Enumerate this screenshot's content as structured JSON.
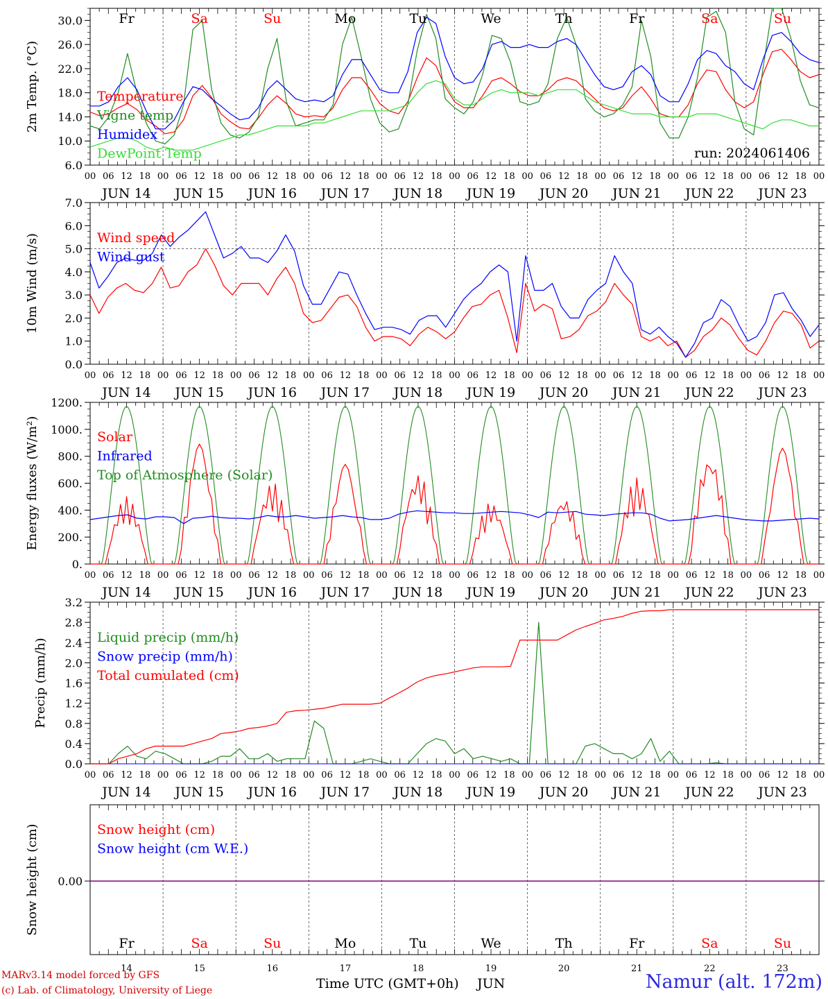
{
  "run_label": "run: 2024061406",
  "station": "Namur (alt. 172m)",
  "footer": {
    "line1": "MARv3.14 model forced by GFS",
    "line2": "(c) Lab. of Climatology, University of Liege"
  },
  "x_axis_title": "Time UTC (GMT+0h)",
  "month_label": "JUN",
  "days": [
    {
      "name": "Fr",
      "date": "JUN 14",
      "num": "14",
      "weekend": false
    },
    {
      "name": "Sa",
      "date": "JUN 15",
      "num": "15",
      "weekend": true
    },
    {
      "name": "Su",
      "date": "JUN 16",
      "num": "16",
      "weekend": true
    },
    {
      "name": "Mo",
      "date": "JUN 17",
      "num": "17",
      "weekend": false
    },
    {
      "name": "Tu",
      "date": "JUN 18",
      "num": "18",
      "weekend": false
    },
    {
      "name": "We",
      "date": "JUN 19",
      "num": "19",
      "weekend": false
    },
    {
      "name": "Th",
      "date": "JUN 20",
      "num": "20",
      "weekend": false
    },
    {
      "name": "Fr",
      "date": "JUN 21",
      "num": "21",
      "weekend": false
    },
    {
      "name": "Sa",
      "date": "JUN 22",
      "num": "22",
      "weekend": true
    },
    {
      "name": "Su",
      "date": "JUN 23",
      "num": "23",
      "weekend": true
    }
  ],
  "hour_labels": [
    "00",
    "06",
    "12",
    "18"
  ],
  "colors": {
    "red": "#ff0000",
    "green": "#228b22",
    "blue": "#0000ff",
    "lightgreen": "#33dd33",
    "weekend": "#ff0000",
    "weekday": "#000000",
    "purple": "#800080"
  },
  "chart_data": [
    {
      "id": "temperature",
      "type": "line",
      "ylabel": "2m Temp. (°C)",
      "ylim": [
        6,
        32
      ],
      "yticks": [
        6,
        10,
        14,
        18,
        22,
        26,
        30
      ],
      "ytick_labels": [
        "6.0",
        "10.0",
        "14.0",
        "18.0",
        "22.0",
        "26.0",
        "30.0"
      ],
      "x_unit": "hours from JUN 14 00 UTC, 3-hourly",
      "series": [
        {
          "name": "Temperature",
          "color": "red",
          "values": [
            14.8,
            14.2,
            14.5,
            15.5,
            16.2,
            15.2,
            13.5,
            12.5,
            11.2,
            11.5,
            13.5,
            17.5,
            19.2,
            17.2,
            14.5,
            13.2,
            12.2,
            12.0,
            13.8,
            16.0,
            17.5,
            16.2,
            14.5,
            14.0,
            14.2,
            14.0,
            15.5,
            18.5,
            20.5,
            20.5,
            18.5,
            16.2,
            15.0,
            14.5,
            16.5,
            20.5,
            23.8,
            22.5,
            19.0,
            16.5,
            15.5,
            15.5,
            17.5,
            20.0,
            20.5,
            19.5,
            18.2,
            17.5,
            17.5,
            18.5,
            20.0,
            20.5,
            20.0,
            18.5,
            17.0,
            15.5,
            15.0,
            15.5,
            17.5,
            19.0,
            17.0,
            14.5,
            14.0,
            14.0,
            16.0,
            19.5,
            21.8,
            21.5,
            18.5,
            16.5,
            15.5,
            16.5,
            21.0,
            24.8,
            25.2,
            23.5,
            21.5,
            20.5,
            21.0
          ]
        },
        {
          "name": "Vigne temp",
          "color": "green",
          "values": [
            12.5,
            12.0,
            14.0,
            18.0,
            24.5,
            18.0,
            13.0,
            10.0,
            9.5,
            11.0,
            16.0,
            28.5,
            30.0,
            18.5,
            13.0,
            11.0,
            10.5,
            11.5,
            14.0,
            22.0,
            27.0,
            16.5,
            12.5,
            13.0,
            13.5,
            13.5,
            16.0,
            26.0,
            30.5,
            24.0,
            17.0,
            13.0,
            11.5,
            12.0,
            16.0,
            25.0,
            31.0,
            27.0,
            17.0,
            15.5,
            14.5,
            16.5,
            21.0,
            27.5,
            27.0,
            23.0,
            16.5,
            16.0,
            16.5,
            19.5,
            27.0,
            30.5,
            26.0,
            17.0,
            15.0,
            14.0,
            14.5,
            16.0,
            19.0,
            30.0,
            24.0,
            13.0,
            10.5,
            10.5,
            14.0,
            20.5,
            30.5,
            31.5,
            28.0,
            16.5,
            12.0,
            11.0,
            22.0,
            32.0,
            32.0,
            27.0,
            20.0,
            16.0,
            15.5
          ]
        },
        {
          "name": "Humidex",
          "color": "blue",
          "values": [
            15.8,
            15.8,
            16.5,
            19.0,
            20.5,
            18.5,
            15.0,
            12.0,
            12.0,
            13.5,
            16.5,
            19.0,
            18.5,
            17.0,
            15.8,
            14.5,
            13.5,
            13.8,
            15.5,
            18.5,
            20.0,
            18.5,
            17.0,
            16.5,
            16.8,
            16.5,
            17.5,
            21.0,
            23.5,
            23.5,
            21.0,
            18.5,
            18.0,
            18.0,
            21.5,
            28.0,
            30.5,
            29.5,
            24.0,
            20.5,
            19.5,
            19.8,
            22.0,
            26.0,
            26.5,
            25.5,
            25.5,
            26.0,
            25.5,
            25.5,
            26.5,
            27.0,
            26.0,
            23.5,
            21.0,
            19.0,
            18.5,
            19.0,
            21.5,
            22.5,
            21.0,
            17.5,
            16.5,
            16.5,
            19.5,
            23.5,
            25.0,
            24.5,
            22.5,
            21.5,
            19.5,
            18.5,
            23.5,
            27.5,
            28.0,
            26.5,
            24.5,
            23.5,
            23.0
          ]
        },
        {
          "name": "DewPoint Temp",
          "color": "lightgreen",
          "values": [
            9.0,
            9.5,
            10.0,
            10.5,
            10.5,
            10.0,
            9.0,
            8.5,
            9.0,
            8.5,
            8.5,
            8.5,
            9.0,
            9.5,
            10.0,
            10.5,
            11.0,
            11.0,
            11.5,
            12.0,
            12.5,
            12.5,
            12.5,
            12.5,
            13.0,
            13.0,
            13.5,
            14.0,
            14.5,
            15.0,
            15.0,
            15.0,
            15.0,
            15.5,
            16.0,
            18.0,
            19.5,
            20.0,
            19.5,
            17.0,
            16.0,
            16.0,
            17.0,
            18.0,
            18.5,
            18.0,
            18.0,
            18.0,
            17.5,
            18.0,
            18.5,
            18.5,
            18.5,
            17.5,
            16.5,
            16.0,
            15.5,
            15.0,
            14.5,
            14.5,
            14.5,
            14.0,
            14.0,
            14.0,
            14.0,
            14.5,
            14.5,
            14.5,
            14.0,
            13.5,
            13.0,
            12.5,
            12.0,
            13.0,
            13.5,
            13.5,
            13.0,
            12.5,
            12.5
          ]
        }
      ]
    },
    {
      "id": "wind",
      "type": "line",
      "ylabel": "10m Wind (m/s)",
      "ylim": [
        0,
        7
      ],
      "yticks": [
        0,
        1,
        2,
        3,
        4,
        5,
        6,
        7
      ],
      "ytick_labels": [
        "0.0",
        "1.0",
        "2.0",
        "3.0",
        "4.0",
        "5.0",
        "6.0",
        "7.0"
      ],
      "reference_line": 5,
      "series": [
        {
          "name": "Wind speed",
          "color": "red",
          "values": [
            3.0,
            2.2,
            2.9,
            3.3,
            3.5,
            3.2,
            3.1,
            3.5,
            4.2,
            3.3,
            3.4,
            4.0,
            4.3,
            5.0,
            4.3,
            3.4,
            3.0,
            3.5,
            3.5,
            3.5,
            3.0,
            3.7,
            4.2,
            3.5,
            2.2,
            1.8,
            1.9,
            2.4,
            2.9,
            3.0,
            2.5,
            1.6,
            1.0,
            1.2,
            1.2,
            1.1,
            0.8,
            1.3,
            1.6,
            1.4,
            1.1,
            1.4,
            2.0,
            2.5,
            2.6,
            3.0,
            3.2,
            2.0,
            0.5,
            3.5,
            2.3,
            2.6,
            2.4,
            1.1,
            1.2,
            1.5,
            2.1,
            2.3,
            2.7,
            3.5,
            3.0,
            2.6,
            1.2,
            1.0,
            1.2,
            0.8,
            1.0,
            0.3,
            0.6,
            1.2,
            1.5,
            2.0,
            1.7,
            1.1,
            0.6,
            0.4,
            1.0,
            1.8,
            2.3,
            2.2,
            1.7,
            0.7,
            1.0
          ]
        },
        {
          "name": "Wind gust",
          "color": "blue",
          "values": [
            4.4,
            3.3,
            3.8,
            4.4,
            4.6,
            4.5,
            4.5,
            4.8,
            5.6,
            5.1,
            5.5,
            5.8,
            6.2,
            6.6,
            5.6,
            4.6,
            4.8,
            5.1,
            4.6,
            4.6,
            4.4,
            4.9,
            5.6,
            4.9,
            3.4,
            2.6,
            2.6,
            3.3,
            4.0,
            3.9,
            3.0,
            2.2,
            1.5,
            1.6,
            1.6,
            1.5,
            1.3,
            1.9,
            2.1,
            2.1,
            1.6,
            2.2,
            2.8,
            3.2,
            3.5,
            4.0,
            4.3,
            4.0,
            1.0,
            4.7,
            3.2,
            3.2,
            3.5,
            2.5,
            2.0,
            2.0,
            2.8,
            3.2,
            3.5,
            4.7,
            4.0,
            3.5,
            1.5,
            1.3,
            1.6,
            1.2,
            0.9,
            0.3,
            0.9,
            1.8,
            2.0,
            2.8,
            2.5,
            1.7,
            1.0,
            1.2,
            1.8,
            3.0,
            3.1,
            2.4,
            1.9,
            1.2,
            1.7
          ]
        }
      ]
    },
    {
      "id": "energy",
      "type": "line",
      "ylabel": "Energy fluxes (W/m²)",
      "ylim": [
        0,
        1200
      ],
      "yticks": [
        0,
        200,
        400,
        600,
        800,
        1000,
        1200
      ],
      "ytick_labels": [
        "0.",
        "200.",
        "400.",
        "600.",
        "800.",
        "1000.",
        "1200."
      ],
      "toa_peak": 1170,
      "series": [
        {
          "name": "Solar",
          "color": "red",
          "peaks": [
            500,
            890,
            610,
            740,
            680,
            460,
            500,
            640,
            830,
            860
          ]
        },
        {
          "name": "Infrared",
          "color": "blue",
          "values": [
            330,
            340,
            350,
            360,
            365,
            340,
            335,
            350,
            350,
            345,
            300,
            340,
            345,
            355,
            345,
            340,
            340,
            335,
            345,
            360,
            350,
            350,
            360,
            350,
            340,
            345,
            350,
            360,
            350,
            345,
            330,
            330,
            340,
            370,
            385,
            395,
            390,
            385,
            380,
            380,
            375,
            375,
            380,
            385,
            390,
            385,
            380,
            365,
            345,
            385,
            380,
            385,
            390,
            370,
            365,
            360,
            370,
            375,
            380,
            380,
            370,
            340,
            320,
            325,
            330,
            340,
            350,
            360,
            350,
            340,
            330,
            325,
            320,
            320,
            325,
            330,
            335,
            340,
            335
          ]
        },
        {
          "name": "Top of Atmosphere (Solar)",
          "color": "green",
          "peak": 1170
        }
      ]
    },
    {
      "id": "precip",
      "type": "line",
      "ylabel": "Precip (mm/h)",
      "ylim": [
        0,
        3.2
      ],
      "yticks": [
        0,
        0.4,
        0.8,
        1.2,
        1.6,
        2.0,
        2.4,
        2.8,
        3.2
      ],
      "ytick_labels": [
        "0.0",
        "0.4",
        "0.8",
        "1.2",
        "1.6",
        "2.0",
        "2.4",
        "2.8",
        "3.2"
      ],
      "series": [
        {
          "name": "Liquid precip (mm/h)",
          "color": "green",
          "values": [
            0,
            0,
            0,
            0.2,
            0.35,
            0.15,
            0.1,
            0.25,
            0.2,
            0.1,
            0,
            0,
            0,
            0.05,
            0.15,
            0.15,
            0.3,
            0.1,
            0.1,
            0.2,
            0.05,
            0.1,
            0.1,
            0.1,
            0.85,
            0.7,
            0,
            0,
            0,
            0.05,
            0.1,
            0.05,
            0,
            0,
            0,
            0.2,
            0.4,
            0.5,
            0.45,
            0.2,
            0.3,
            0.1,
            0.15,
            0.1,
            0.05,
            0.1,
            0,
            0,
            2.8,
            0,
            0,
            0,
            0,
            0.35,
            0.4,
            0.3,
            0.2,
            0.2,
            0.1,
            0.2,
            0.5,
            0.05,
            0.25,
            0,
            0,
            0,
            0,
            0.02,
            0,
            0,
            0,
            0,
            0,
            0,
            0,
            0,
            0,
            0,
            0
          ]
        },
        {
          "name": "Snow precip (mm/h)",
          "color": "blue",
          "values": [
            0,
            0
          ]
        },
        {
          "name": "Total cumulated (cm)",
          "color": "red",
          "values": [
            0,
            0,
            0,
            0.1,
            0.15,
            0.2,
            0.3,
            0.35,
            0.35,
            0.35,
            0.35,
            0.4,
            0.45,
            0.5,
            0.6,
            0.62,
            0.65,
            0.7,
            0.72,
            0.75,
            0.8,
            1.02,
            1.05,
            1.06,
            1.08,
            1.1,
            1.14,
            1.18,
            1.18,
            1.18,
            1.18,
            1.2,
            1.3,
            1.4,
            1.5,
            1.62,
            1.7,
            1.75,
            1.78,
            1.82,
            1.86,
            1.9,
            1.92,
            1.92,
            1.92,
            1.93,
            2.45,
            2.45,
            2.45,
            2.45,
            2.45,
            2.55,
            2.65,
            2.72,
            2.78,
            2.85,
            2.88,
            2.92,
            2.98,
            3.02,
            3.03,
            3.03,
            3.05,
            3.05,
            3.05,
            3.05,
            3.05,
            3.05,
            3.05,
            3.05,
            3.05,
            3.05,
            3.05,
            3.05,
            3.05,
            3.05,
            3.05,
            3.05,
            3.05
          ]
        }
      ]
    },
    {
      "id": "snow",
      "type": "line",
      "ylabel": "Snow height (cm)",
      "yticks": [
        0
      ],
      "ytick_labels": [
        "0.00"
      ],
      "series": [
        {
          "name": "Snow height (cm)",
          "color": "red",
          "values": [
            0,
            0
          ]
        },
        {
          "name": "Snow height (cm W.E.)",
          "color": "blue",
          "values": [
            0,
            0
          ]
        }
      ]
    }
  ]
}
